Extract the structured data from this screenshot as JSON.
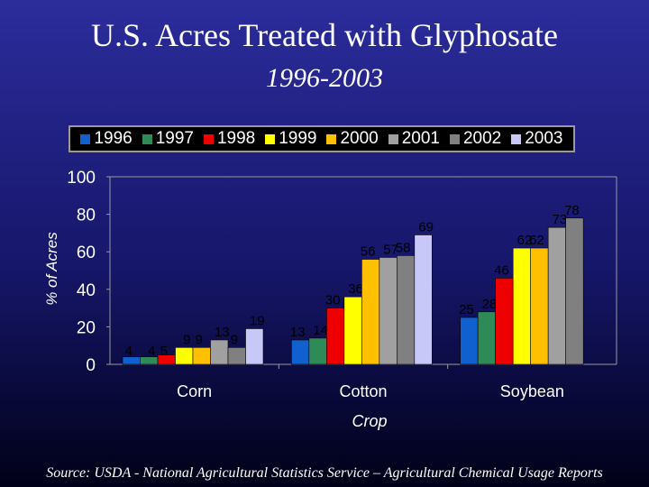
{
  "title": "U.S. Acres Treated with Glyphosate",
  "subtitle": "1996-2003",
  "source": "Source: USDA - National Agricultural Statistics Service – Agricultural Chemical Usage Reports",
  "chart_data": {
    "type": "bar",
    "categories": [
      "Corn",
      "Cotton",
      "Soybean"
    ],
    "series": [
      {
        "name": "1996",
        "color": "#1060d0",
        "values": [
          4,
          13,
          25
        ]
      },
      {
        "name": "1997",
        "color": "#2e8b57",
        "values": [
          4,
          14,
          28
        ]
      },
      {
        "name": "1998",
        "color": "#ee0000",
        "values": [
          5,
          30,
          46
        ]
      },
      {
        "name": "1999",
        "color": "#ffff00",
        "values": [
          9,
          36,
          62
        ]
      },
      {
        "name": "2000",
        "color": "#ffc000",
        "values": [
          9,
          56,
          62
        ]
      },
      {
        "name": "2001",
        "color": "#a0a0a0",
        "values": [
          13,
          57,
          73
        ]
      },
      {
        "name": "2002",
        "color": "#808080",
        "values": [
          9,
          58,
          78
        ]
      },
      {
        "name": "2003",
        "color": "#c8c8f8",
        "values": [
          19,
          69,
          null
        ]
      }
    ],
    "xlabel": "Crop",
    "ylabel": "% of Acres",
    "ylim": [
      0,
      100
    ],
    "yticks": [
      0,
      20,
      40,
      60,
      80,
      100
    ],
    "legend_position": "top",
    "grid": false
  }
}
